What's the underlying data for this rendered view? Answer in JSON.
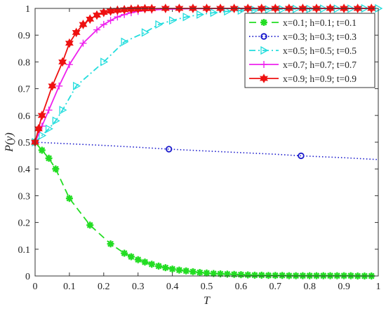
{
  "chart_data": {
    "type": "line",
    "title": "",
    "xlabel": "T",
    "ylabel": "P(y)",
    "xlim": [
      0,
      1
    ],
    "ylim": [
      0,
      1
    ],
    "xticks": [
      "0",
      "0.1",
      "0.2",
      "0.3",
      "0.4",
      "0.5",
      "0.6",
      "0.7",
      "0.8",
      "0.9",
      "1"
    ],
    "yticks": [
      "0",
      "0.1",
      "0.2",
      "0.3",
      "0.4",
      "0.5",
      "0.6",
      "0.7",
      "0.8",
      "0.9",
      "1"
    ],
    "grid": false,
    "legend_position": "top-right",
    "series": [
      {
        "name": "x=0.1; h=0.1; t=0.1",
        "color": "#22dd22",
        "line_style": "dashed",
        "marker": "star",
        "x": [
          0,
          0.02,
          0.04,
          0.06,
          0.1,
          0.16,
          0.22,
          0.26,
          0.28,
          0.3,
          0.32,
          0.34,
          0.36,
          0.38,
          0.4,
          0.42,
          0.44,
          0.46,
          0.48,
          0.5,
          0.52,
          0.54,
          0.56,
          0.58,
          0.6,
          0.62,
          0.64,
          0.66,
          0.68,
          0.7,
          0.72,
          0.74,
          0.76,
          0.78,
          0.8,
          0.82,
          0.84,
          0.86,
          0.88,
          0.9,
          0.92,
          0.94,
          0.96,
          0.98
        ],
        "y": [
          0.5,
          0.47,
          0.44,
          0.4,
          0.29,
          0.19,
          0.12,
          0.085,
          0.072,
          0.061,
          0.052,
          0.044,
          0.037,
          0.031,
          0.026,
          0.022,
          0.019,
          0.016,
          0.013,
          0.011,
          0.009,
          0.008,
          0.007,
          0.006,
          0.005,
          0.004,
          0.003,
          0.003,
          0.002,
          0.002,
          0.002,
          0.001,
          0.001,
          0.001,
          0.001,
          0.001,
          0.001,
          0.001,
          0.001,
          0.001,
          0.001,
          0.0,
          0.0,
          0.0
        ]
      },
      {
        "name": "x=0.3; h=0.3; t=0.3",
        "color": "#1a1acc",
        "line_style": "dotted",
        "marker": "circle",
        "x": [
          0,
          0.1,
          0.2,
          0.3,
          0.39,
          0.5,
          0.6,
          0.7,
          0.775,
          0.9,
          1.0
        ],
        "y": [
          0.5,
          0.494,
          0.488,
          0.481,
          0.474,
          0.467,
          0.461,
          0.455,
          0.449,
          0.442,
          0.435
        ],
        "marker_x": [
          0.39,
          0.775
        ],
        "marker_y": [
          0.474,
          0.449
        ]
      },
      {
        "name": "x=0.5; h=0.5; t=0.5",
        "color": "#22dddd",
        "line_style": "dashdot",
        "marker": "triangle-right",
        "x": [
          0,
          0.02,
          0.04,
          0.06,
          0.08,
          0.12,
          0.2,
          0.26,
          0.32,
          0.36,
          0.4,
          0.44,
          0.48,
          0.52,
          0.56,
          0.6,
          0.64,
          0.68,
          0.72,
          0.76,
          0.8,
          0.84,
          0.88,
          0.92,
          0.96,
          1.0
        ],
        "y": [
          0.5,
          0.525,
          0.55,
          0.58,
          0.62,
          0.71,
          0.8,
          0.875,
          0.91,
          0.94,
          0.955,
          0.968,
          0.977,
          0.984,
          0.989,
          0.992,
          0.994,
          0.996,
          0.997,
          0.998,
          0.998,
          0.999,
          0.999,
          0.999,
          1.0,
          1.0
        ]
      },
      {
        "name": "x=0.7; h=0.7; t=0.7",
        "color": "#ee22ee",
        "line_style": "solid",
        "marker": "plus",
        "x": [
          0,
          0.02,
          0.04,
          0.07,
          0.1,
          0.14,
          0.18,
          0.2,
          0.22,
          0.24,
          0.26,
          0.28,
          0.3,
          0.34,
          0.38,
          0.42,
          0.46,
          0.5,
          0.54,
          0.58,
          0.62,
          0.66,
          0.7,
          0.74,
          0.78,
          0.82,
          0.86,
          0.9,
          0.94,
          0.98
        ],
        "y": [
          0.5,
          0.56,
          0.62,
          0.71,
          0.79,
          0.87,
          0.92,
          0.94,
          0.955,
          0.968,
          0.977,
          0.984,
          0.989,
          0.994,
          0.997,
          0.998,
          0.999,
          0.999,
          1.0,
          1.0,
          1.0,
          1.0,
          1.0,
          1.0,
          1.0,
          1.0,
          1.0,
          1.0,
          1.0,
          1.0
        ]
      },
      {
        "name": "x=0.9; h=0.9; t=0.9",
        "color": "#ee1111",
        "line_style": "solid",
        "marker": "hexagram",
        "x": [
          0,
          0.01,
          0.02,
          0.05,
          0.08,
          0.1,
          0.12,
          0.14,
          0.16,
          0.18,
          0.2,
          0.22,
          0.24,
          0.26,
          0.28,
          0.3,
          0.32,
          0.34,
          0.38,
          0.42,
          0.46,
          0.5,
          0.54,
          0.58,
          0.62,
          0.66,
          0.7,
          0.74,
          0.78,
          0.82,
          0.86,
          0.9,
          0.94,
          0.98
        ],
        "y": [
          0.5,
          0.55,
          0.6,
          0.71,
          0.8,
          0.87,
          0.91,
          0.94,
          0.96,
          0.975,
          0.985,
          0.99,
          0.993,
          0.995,
          0.997,
          0.998,
          0.999,
          0.999,
          1.0,
          1.0,
          1.0,
          1.0,
          1.0,
          1.0,
          1.0,
          1.0,
          1.0,
          1.0,
          1.0,
          1.0,
          1.0,
          1.0,
          1.0,
          1.0
        ]
      }
    ]
  }
}
